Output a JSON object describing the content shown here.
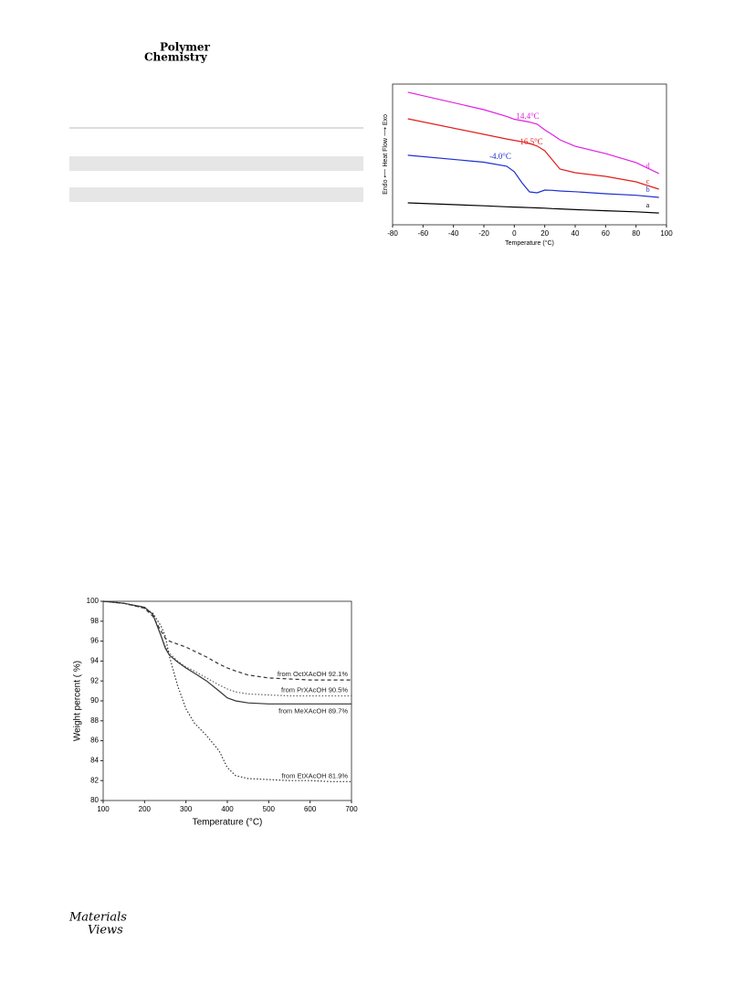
{
  "header": {
    "journal_line1": "Polymer",
    "journal_line2": "Chemistry"
  },
  "footer": {
    "logo_line1": "Materials",
    "logo_line2": "Views"
  },
  "chart_data": [
    {
      "type": "line",
      "x_label": "Temperature (°C)",
      "y_label": "Endo ⟵ Heat Flow ⟶ Exo",
      "x": [
        -70,
        -20,
        -5,
        0,
        5,
        10,
        15,
        20,
        25,
        30,
        40,
        60,
        80,
        95
      ],
      "xlim": [
        -80,
        100
      ],
      "xticks": [
        -80,
        -60,
        -40,
        -20,
        0,
        20,
        40,
        60,
        80,
        100
      ],
      "ylim": [
        0,
        10
      ],
      "series": [
        {
          "name": "a",
          "color": "#000000",
          "dash": "solid",
          "values": [
            1.56,
            1.35,
            1.28,
            1.26,
            1.24,
            1.22,
            1.2,
            1.18,
            1.15,
            1.13,
            1.08,
            1.0,
            0.92,
            0.84
          ]
        },
        {
          "name": "b",
          "color": "#1f2fd0",
          "dash": "solid",
          "values": [
            4.94,
            4.45,
            4.16,
            3.77,
            2.99,
            2.34,
            2.27,
            2.47,
            2.45,
            2.4,
            2.35,
            2.21,
            2.1,
            1.95
          ]
        },
        {
          "name": "c",
          "color": "#e0201c",
          "dash": "solid",
          "values": [
            7.53,
            6.43,
            6.1,
            6.0,
            5.9,
            5.78,
            5.6,
            5.26,
            4.61,
            3.96,
            3.7,
            3.44,
            3.05,
            2.53
          ]
        },
        {
          "name": "d",
          "color": "#e020e0",
          "dash": "solid",
          "values": [
            9.42,
            8.18,
            7.7,
            7.5,
            7.4,
            7.3,
            7.15,
            6.75,
            6.4,
            6.04,
            5.58,
            5.06,
            4.42,
            3.64
          ]
        }
      ],
      "annotations": [
        "-4.0°C",
        "16.5°C",
        "14.4°C"
      ]
    },
    {
      "type": "line",
      "x_label": "Temperature (°C)",
      "y_label": "Weight percent ( %)",
      "x": [
        100,
        150,
        200,
        220,
        240,
        250,
        260,
        280,
        300,
        320,
        350,
        380,
        400,
        420,
        450,
        500,
        550,
        600,
        650,
        700
      ],
      "xlim": [
        100,
        700
      ],
      "xticks": [
        100,
        200,
        300,
        400,
        500,
        600,
        700
      ],
      "ylim": [
        80,
        100
      ],
      "yticks": [
        80,
        82,
        84,
        86,
        88,
        90,
        92,
        94,
        96,
        98,
        100
      ],
      "series": [
        {
          "name": "from OctXAcOH 92.1%",
          "color": "#333333",
          "dash": "dashed",
          "values": [
            100,
            99.8,
            99.3,
            98.5,
            97,
            96.3,
            96.0,
            95.7,
            95.4,
            95.0,
            94.4,
            93.7,
            93.3,
            93.0,
            92.6,
            92.3,
            92.2,
            92.1,
            92.1,
            92.1
          ]
        },
        {
          "name": "from PrXAcOH 90.5%",
          "color": "#666666",
          "dash": "dotted",
          "values": [
            100,
            99.8,
            99.4,
            98.7,
            96.5,
            95.5,
            94.8,
            94.0,
            93.4,
            93.0,
            92.3,
            91.6,
            91.2,
            90.9,
            90.7,
            90.6,
            90.5,
            90.5,
            90.5,
            90.5
          ]
        },
        {
          "name": "from MeXAcOH 89.7%",
          "color": "#333333",
          "dash": "solid",
          "values": [
            100,
            99.8,
            99.4,
            98.7,
            96.5,
            95.3,
            94.6,
            93.9,
            93.3,
            92.8,
            92.0,
            91.0,
            90.3,
            90.0,
            89.8,
            89.7,
            89.7,
            89.7,
            89.7,
            89.7
          ]
        },
        {
          "name": "from EtXAcOH 81.9%",
          "color": "#333333",
          "dash": "dotted",
          "values": [
            100,
            99.8,
            99.3,
            98.8,
            97.5,
            96.5,
            94.5,
            91.5,
            89.2,
            87.8,
            86.5,
            85.0,
            83.3,
            82.5,
            82.2,
            82.1,
            82.0,
            82.0,
            81.9,
            81.9
          ]
        }
      ]
    }
  ]
}
